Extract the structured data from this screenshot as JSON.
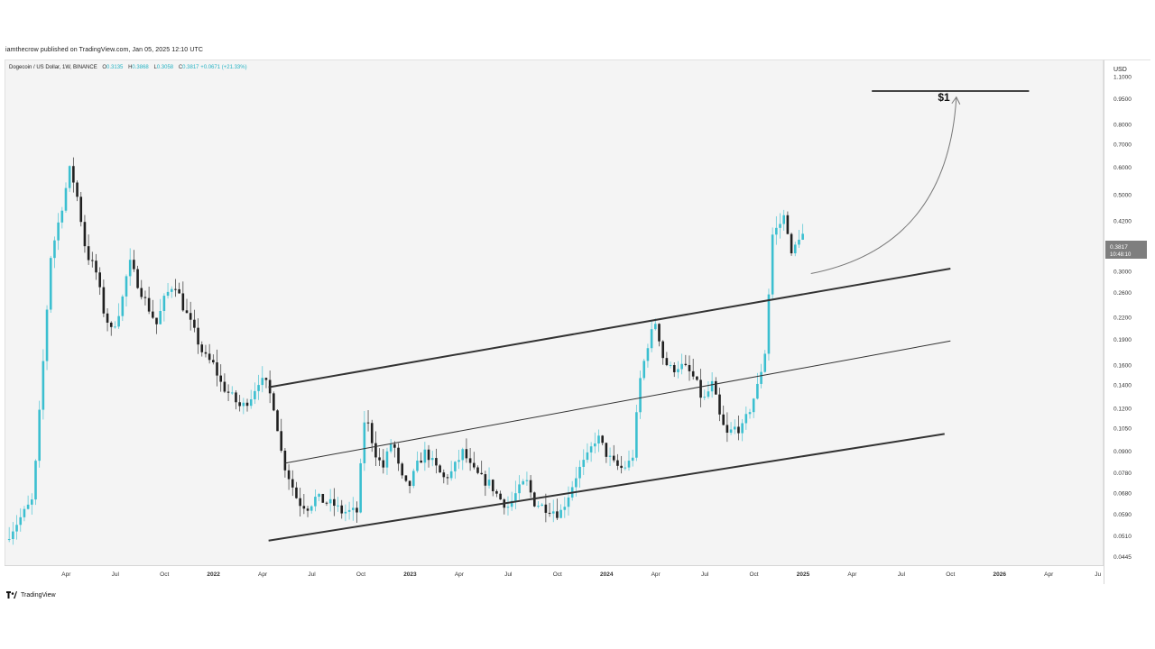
{
  "header": {
    "published": "iamthecrow published on TradingView.com, Jan 05, 2025 12:10 UTC"
  },
  "legend": {
    "symbol": "Dogecoin / US Dollar, 1W, BINANCE",
    "o_label": "O",
    "o_value": "0.3135",
    "h_label": "H",
    "h_value": "0.3868",
    "l_label": "L",
    "l_value": "0.3058",
    "c_label": "C",
    "c_value": "0.3817",
    "change": "+0.0671 (+21.33%)"
  },
  "footer": {
    "brand": "TradingView"
  },
  "annotation": {
    "target_label": "$1"
  },
  "price_badge": {
    "price": "0.3817",
    "countdown": "10:48:10"
  },
  "colors": {
    "up": "#3bbfd0",
    "down": "#202020",
    "grid_bg": "#f4f4f4",
    "line": "#333333"
  },
  "chart_data": {
    "type": "candlestick",
    "currency": "USD",
    "yscale": "log",
    "ylim": [
      0.0425,
      1.22
    ],
    "y_ticks": [
      {
        "v": 1.1,
        "label": "1.1000"
      },
      {
        "v": 0.95,
        "label": "0.9500"
      },
      {
        "v": 0.8,
        "label": "0.8000"
      },
      {
        "v": 0.7,
        "label": "0.7000"
      },
      {
        "v": 0.6,
        "label": "0.6000"
      },
      {
        "v": 0.5,
        "label": "0.5000"
      },
      {
        "v": 0.42,
        "label": "0.4200"
      },
      {
        "v": 0.3,
        "label": "0.3000"
      },
      {
        "v": 0.26,
        "label": "0.2600"
      },
      {
        "v": 0.22,
        "label": "0.2200"
      },
      {
        "v": 0.19,
        "label": "0.1900"
      },
      {
        "v": 0.16,
        "label": "0.1600"
      },
      {
        "v": 0.14,
        "label": "0.1400"
      },
      {
        "v": 0.12,
        "label": "0.1200"
      },
      {
        "v": 0.105,
        "label": "0.1050"
      },
      {
        "v": 0.09,
        "label": "0.0900"
      },
      {
        "v": 0.078,
        "label": "0.0780"
      },
      {
        "v": 0.068,
        "label": "0.0680"
      },
      {
        "v": 0.059,
        "label": "0.0590"
      },
      {
        "v": 0.051,
        "label": "0.0510"
      },
      {
        "v": 0.0445,
        "label": "0.0445"
      }
    ],
    "x_ticks": [
      {
        "t": 2021.25,
        "label": "Apr"
      },
      {
        "t": 2021.5,
        "label": "Jul"
      },
      {
        "t": 2021.75,
        "label": "Oct"
      },
      {
        "t": 2022.0,
        "label": "2022"
      },
      {
        "t": 2022.25,
        "label": "Apr"
      },
      {
        "t": 2022.5,
        "label": "Jul"
      },
      {
        "t": 2022.75,
        "label": "Oct"
      },
      {
        "t": 2023.0,
        "label": "2023"
      },
      {
        "t": 2023.25,
        "label": "Apr"
      },
      {
        "t": 2023.5,
        "label": "Jul"
      },
      {
        "t": 2023.75,
        "label": "Oct"
      },
      {
        "t": 2024.0,
        "label": "2024"
      },
      {
        "t": 2024.25,
        "label": "Apr"
      },
      {
        "t": 2024.5,
        "label": "Jul"
      },
      {
        "t": 2024.75,
        "label": "Oct"
      },
      {
        "t": 2025.0,
        "label": "2025"
      },
      {
        "t": 2025.25,
        "label": "Apr"
      },
      {
        "t": 2025.5,
        "label": "Jul"
      },
      {
        "t": 2025.75,
        "label": "Oct"
      },
      {
        "t": 2026.0,
        "label": "2026"
      },
      {
        "t": 2026.25,
        "label": "Apr"
      },
      {
        "t": 2026.5,
        "label": "Ju"
      }
    ],
    "xlim": [
      2020.95,
      2026.52
    ],
    "candle_path": [
      {
        "t": 2020.96,
        "p": 0.05
      },
      {
        "t": 2021.04,
        "p": 0.058
      },
      {
        "t": 2021.1,
        "p": 0.065
      },
      {
        "t": 2021.14,
        "p": 0.13
      },
      {
        "t": 2021.19,
        "p": 0.33
      },
      {
        "t": 2021.24,
        "p": 0.44
      },
      {
        "t": 2021.29,
        "p": 0.6
      },
      {
        "t": 2021.33,
        "p": 0.48
      },
      {
        "t": 2021.37,
        "p": 0.34
      },
      {
        "t": 2021.42,
        "p": 0.3
      },
      {
        "t": 2021.46,
        "p": 0.23
      },
      {
        "t": 2021.5,
        "p": 0.2
      },
      {
        "t": 2021.55,
        "p": 0.24
      },
      {
        "t": 2021.59,
        "p": 0.32
      },
      {
        "t": 2021.63,
        "p": 0.28
      },
      {
        "t": 2021.68,
        "p": 0.24
      },
      {
        "t": 2021.73,
        "p": 0.21
      },
      {
        "t": 2021.77,
        "p": 0.25
      },
      {
        "t": 2021.82,
        "p": 0.28
      },
      {
        "t": 2021.86,
        "p": 0.24
      },
      {
        "t": 2021.92,
        "p": 0.2
      },
      {
        "t": 2021.97,
        "p": 0.17
      },
      {
        "t": 2022.02,
        "p": 0.16
      },
      {
        "t": 2022.06,
        "p": 0.14
      },
      {
        "t": 2022.11,
        "p": 0.13
      },
      {
        "t": 2022.16,
        "p": 0.12
      },
      {
        "t": 2022.21,
        "p": 0.13
      },
      {
        "t": 2022.25,
        "p": 0.145
      },
      {
        "t": 2022.29,
        "p": 0.14
      },
      {
        "t": 2022.33,
        "p": 0.12
      },
      {
        "t": 2022.37,
        "p": 0.085
      },
      {
        "t": 2022.41,
        "p": 0.074
      },
      {
        "t": 2022.45,
        "p": 0.064
      },
      {
        "t": 2022.5,
        "p": 0.062
      },
      {
        "t": 2022.54,
        "p": 0.066
      },
      {
        "t": 2022.59,
        "p": 0.064
      },
      {
        "t": 2022.63,
        "p": 0.063
      },
      {
        "t": 2022.67,
        "p": 0.06
      },
      {
        "t": 2022.72,
        "p": 0.06
      },
      {
        "t": 2022.75,
        "p": 0.06
      },
      {
        "t": 2022.79,
        "p": 0.116
      },
      {
        "t": 2022.84,
        "p": 0.09
      },
      {
        "t": 2022.88,
        "p": 0.08
      },
      {
        "t": 2022.93,
        "p": 0.098
      },
      {
        "t": 2022.97,
        "p": 0.076
      },
      {
        "t": 2023.01,
        "p": 0.07
      },
      {
        "t": 2023.06,
        "p": 0.083
      },
      {
        "t": 2023.1,
        "p": 0.09
      },
      {
        "t": 2023.14,
        "p": 0.082
      },
      {
        "t": 2023.19,
        "p": 0.075
      },
      {
        "t": 2023.23,
        "p": 0.078
      },
      {
        "t": 2023.29,
        "p": 0.09
      },
      {
        "t": 2023.33,
        "p": 0.08
      },
      {
        "t": 2023.38,
        "p": 0.075
      },
      {
        "t": 2023.43,
        "p": 0.072
      },
      {
        "t": 2023.47,
        "p": 0.066
      },
      {
        "t": 2023.52,
        "p": 0.062
      },
      {
        "t": 2023.56,
        "p": 0.068
      },
      {
        "t": 2023.61,
        "p": 0.074
      },
      {
        "t": 2023.65,
        "p": 0.064
      },
      {
        "t": 2023.7,
        "p": 0.062
      },
      {
        "t": 2023.74,
        "p": 0.061
      },
      {
        "t": 2023.78,
        "p": 0.059
      },
      {
        "t": 2023.82,
        "p": 0.066
      },
      {
        "t": 2023.87,
        "p": 0.078
      },
      {
        "t": 2023.92,
        "p": 0.086
      },
      {
        "t": 2023.97,
        "p": 0.1
      },
      {
        "t": 2024.02,
        "p": 0.088
      },
      {
        "t": 2024.06,
        "p": 0.082
      },
      {
        "t": 2024.1,
        "p": 0.08
      },
      {
        "t": 2024.15,
        "p": 0.085
      },
      {
        "t": 2024.19,
        "p": 0.145
      },
      {
        "t": 2024.23,
        "p": 0.185
      },
      {
        "t": 2024.27,
        "p": 0.215
      },
      {
        "t": 2024.31,
        "p": 0.165
      },
      {
        "t": 2024.35,
        "p": 0.155
      },
      {
        "t": 2024.39,
        "p": 0.16
      },
      {
        "t": 2024.43,
        "p": 0.155
      },
      {
        "t": 2024.47,
        "p": 0.145
      },
      {
        "t": 2024.51,
        "p": 0.125
      },
      {
        "t": 2024.56,
        "p": 0.142
      },
      {
        "t": 2024.59,
        "p": 0.115
      },
      {
        "t": 2024.63,
        "p": 0.1
      },
      {
        "t": 2024.67,
        "p": 0.105
      },
      {
        "t": 2024.71,
        "p": 0.105
      },
      {
        "t": 2024.75,
        "p": 0.12
      },
      {
        "t": 2024.79,
        "p": 0.14
      },
      {
        "t": 2024.83,
        "p": 0.18
      },
      {
        "t": 2024.86,
        "p": 0.38
      },
      {
        "t": 2024.9,
        "p": 0.41
      },
      {
        "t": 2024.93,
        "p": 0.44
      },
      {
        "t": 2024.96,
        "p": 0.33
      },
      {
        "t": 2025.0,
        "p": 0.3817
      }
    ],
    "channel_lines": [
      {
        "name": "channel-top",
        "from": {
          "t": 2022.28,
          "p": 0.138
        },
        "to": {
          "t": 2025.75,
          "p": 0.305
        }
      },
      {
        "name": "channel-mid",
        "from": {
          "t": 2022.36,
          "p": 0.083
        },
        "to": {
          "t": 2025.75,
          "p": 0.188
        }
      },
      {
        "name": "channel-bottom",
        "from": {
          "t": 2022.28,
          "p": 0.0495
        },
        "to": {
          "t": 2025.72,
          "p": 0.101
        }
      }
    ],
    "target_level": {
      "p": 1.0,
      "t_from": 2025.35,
      "t_to": 2026.15
    },
    "projection_arrow": {
      "from": {
        "t": 2025.04,
        "p": 0.295
      },
      "to": {
        "t": 2025.78,
        "p": 0.96
      }
    }
  }
}
